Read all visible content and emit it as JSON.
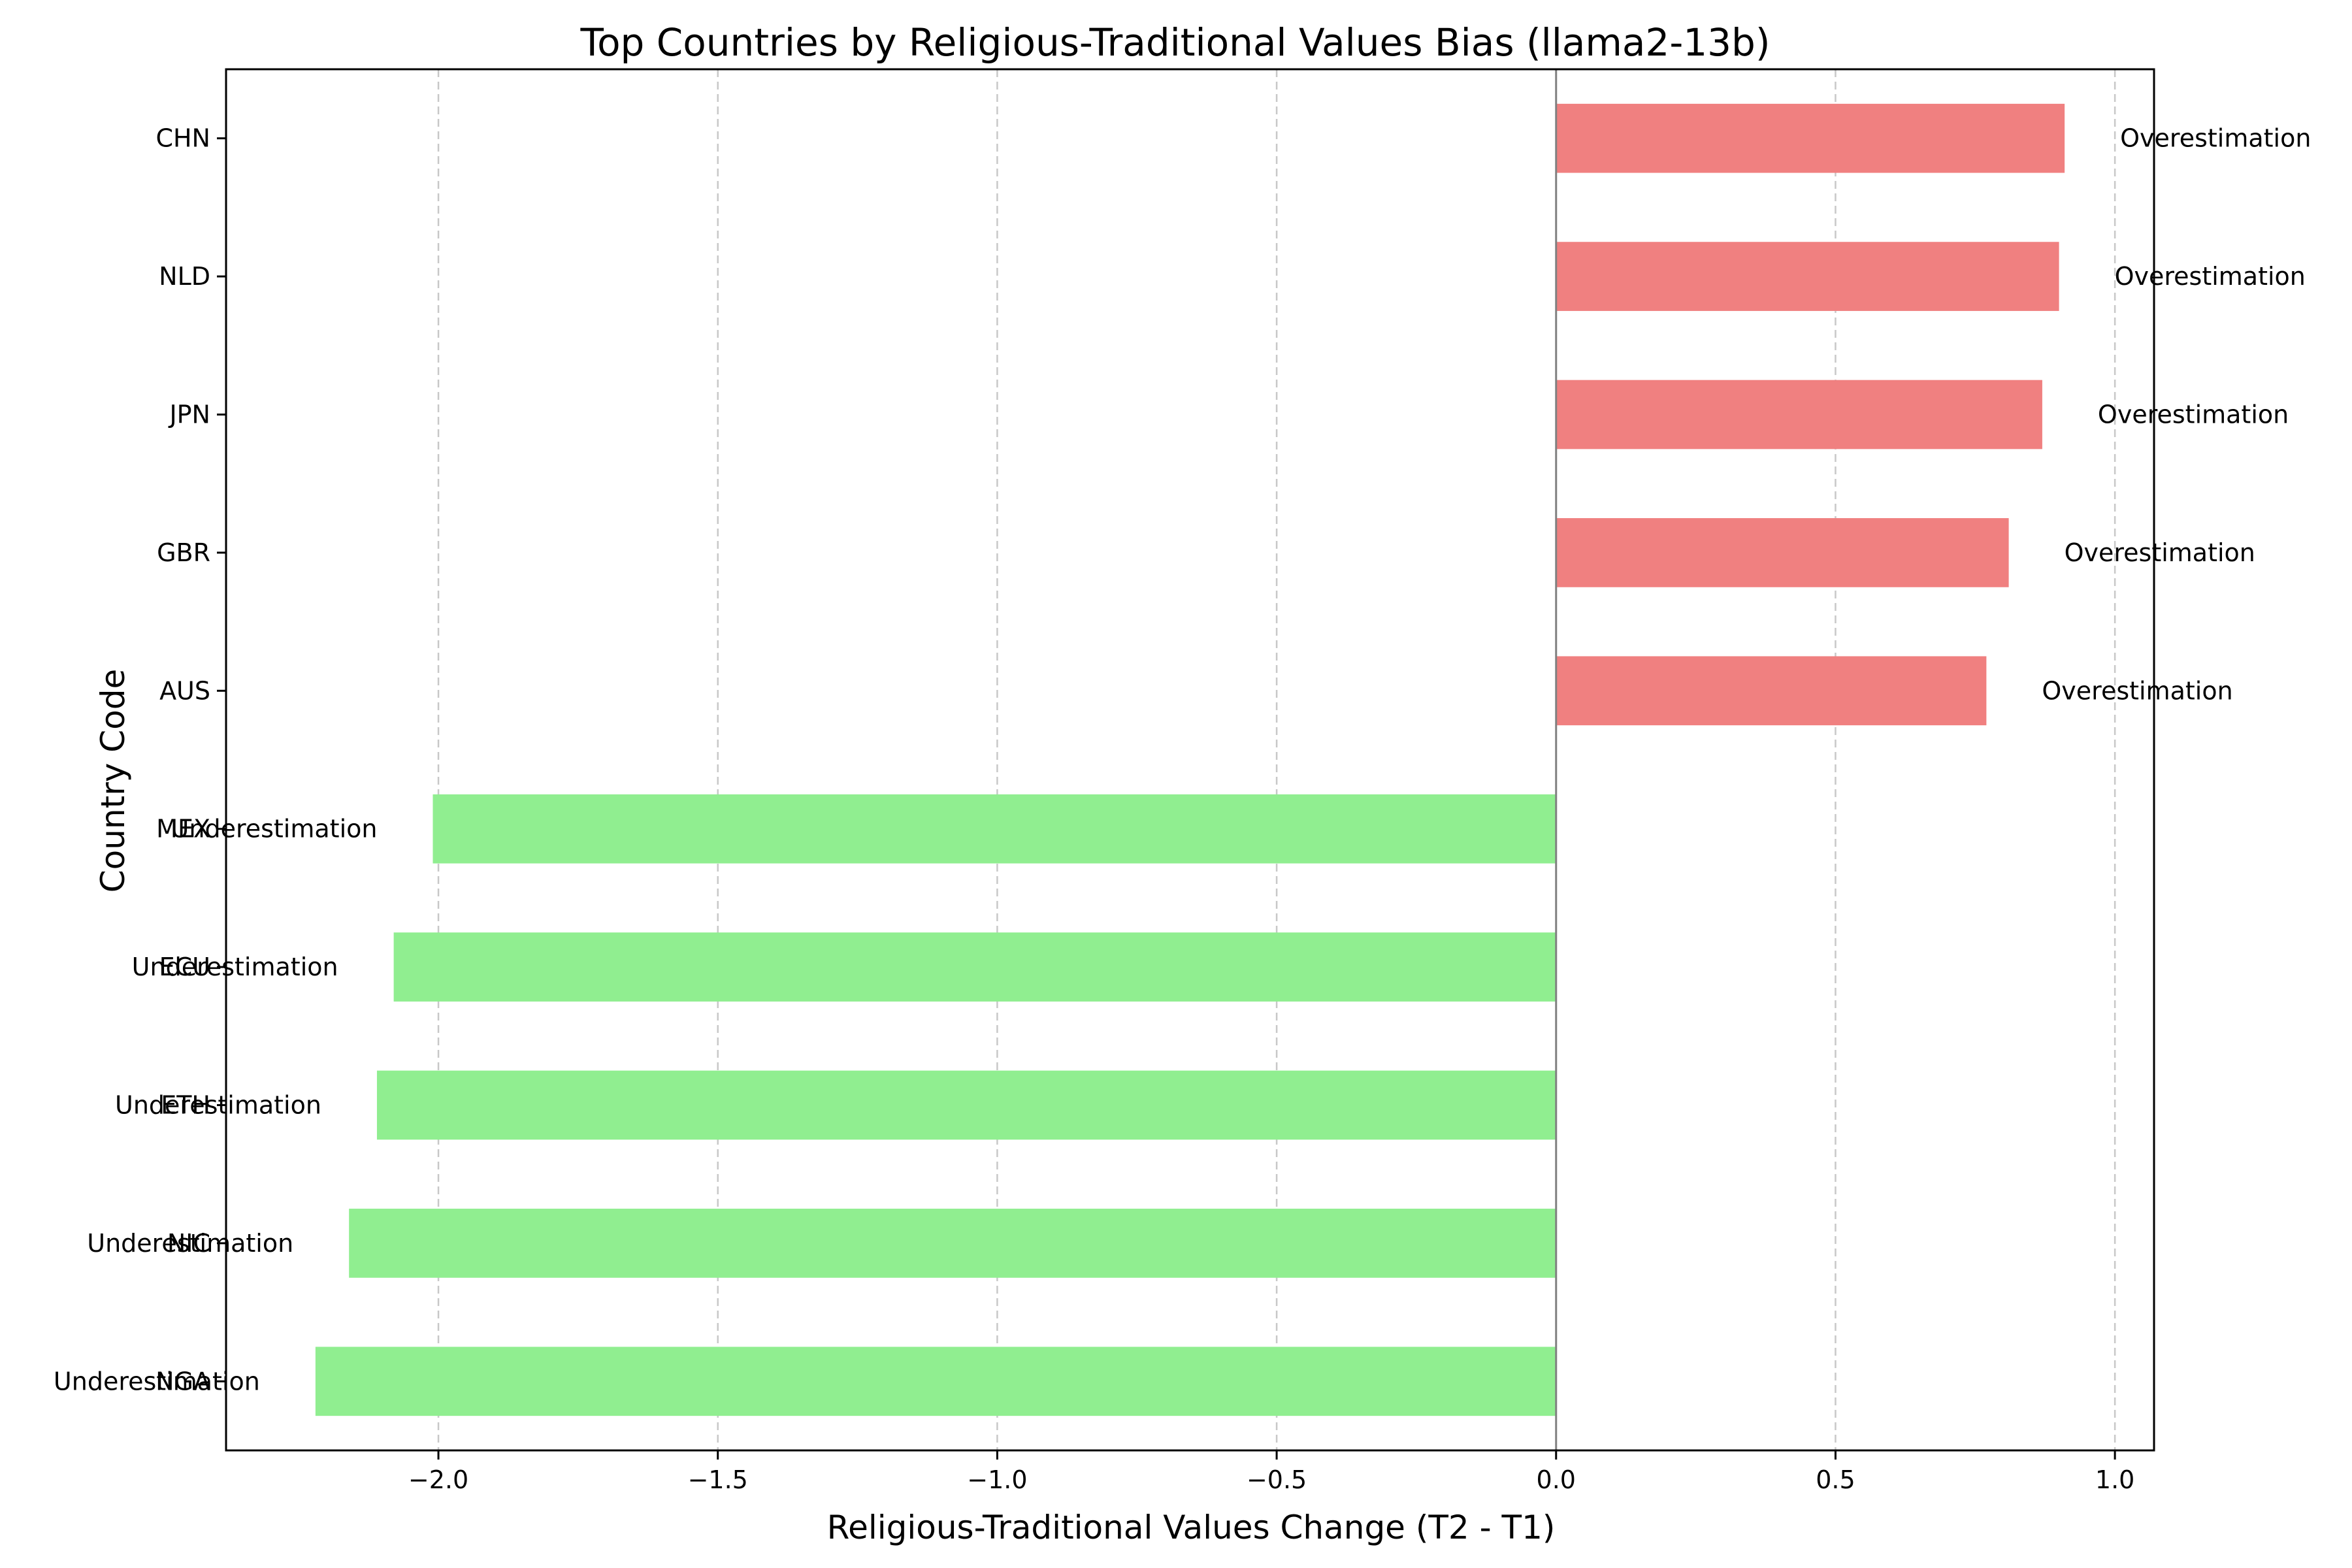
{
  "chart_data": {
    "type": "bar",
    "orientation": "horizontal",
    "title": "Top Countries by Religious-Traditional Values Bias (llama2-13b)",
    "xlabel": "Religious-Traditional Values Change (T2 - T1)",
    "ylabel": "Country Code",
    "xlim": [
      -2.38,
      1.07
    ],
    "xticks": [
      -2.0,
      -1.5,
      -1.0,
      -0.5,
      0.0,
      0.5,
      1.0
    ],
    "xtick_labels": [
      "−2.0",
      "−1.5",
      "−1.0",
      "−0.5",
      "0.0",
      "0.5",
      "1.0"
    ],
    "grid": "x, dashed",
    "categories": [
      "CHN",
      "NLD",
      "JPN",
      "GBR",
      "AUS",
      "MEX",
      "ECU",
      "ETH",
      "NIC",
      "NGA"
    ],
    "values": [
      0.91,
      0.9,
      0.87,
      0.81,
      0.77,
      -2.01,
      -2.08,
      -2.11,
      -2.16,
      -2.22
    ],
    "bar_labels": [
      "Overestimation",
      "Overestimation",
      "Overestimation",
      "Overestimation",
      "Overestimation",
      "Underestimation",
      "Underestimation",
      "Underestimation",
      "Underestimation",
      "Underestimation"
    ],
    "colors": {
      "positive": "#f08080",
      "negative": "#90ee90",
      "zero_line": "#808080",
      "grid": "#c8c8c8",
      "axis": "#000000"
    }
  }
}
